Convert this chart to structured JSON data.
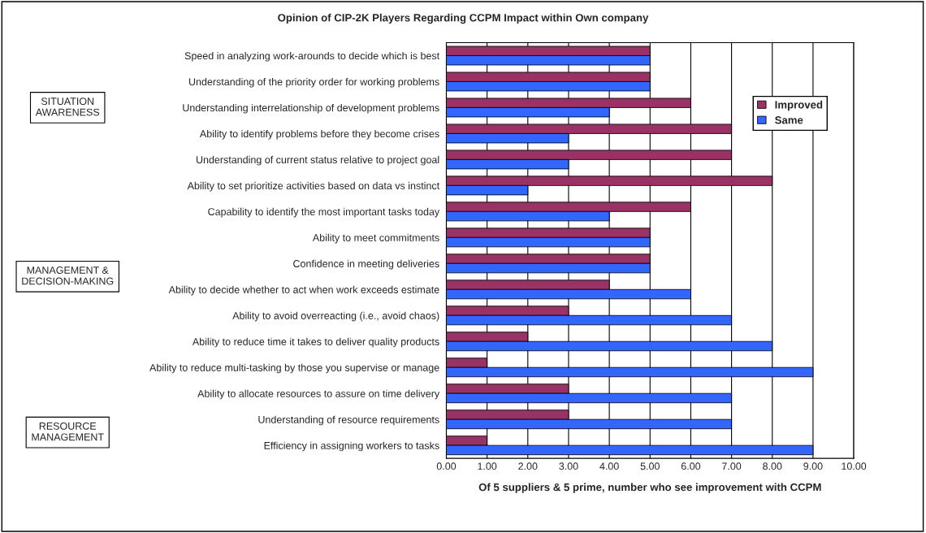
{
  "chart_data": {
    "type": "bar",
    "orientation": "horizontal",
    "title": "Opinion of CIP-2K Players Regarding CCPM Impact within Own company",
    "xlabel": "Of 5 suppliers & 5 prime, number who see improvement with CCPM",
    "categories": [
      "Speed in analyzing work-arounds to decide which is best",
      "Understanding of the priority order for working problems",
      "Understanding interrelationship of development problems",
      "Ability to identify problems before they become crises",
      "Understanding of current status relative to project goal",
      "Ability to set prioritize activities based on data vs instinct",
      "Capability to identify the most important tasks today",
      "Ability to meet commitments",
      "Confidence in meeting deliveries",
      "Ability to decide whether to act when work exceeds estimate",
      "Ability to avoid overreacting (i.e., avoid chaos)",
      "Ability to reduce time it takes to deliver quality products",
      "Ability to reduce multi-tasking by those you supervise or manage",
      "Ability to allocate resources to assure on time delivery",
      "Understanding of resource requirements",
      "Efficiency in assigning workers to tasks"
    ],
    "series": [
      {
        "name": "Improved",
        "color": "#993366",
        "values": [
          5,
          5,
          6,
          7,
          7,
          8,
          6,
          5,
          5,
          4,
          3,
          2,
          1,
          3,
          3,
          1
        ]
      },
      {
        "name": "Same",
        "color": "#3366ff",
        "values": [
          5,
          5,
          4,
          3,
          3,
          2,
          4,
          5,
          5,
          6,
          7,
          8,
          9,
          7,
          7,
          9
        ]
      }
    ],
    "xlim": [
      0,
      10
    ],
    "xticks": [
      {
        "value": 0,
        "label": "0.00"
      },
      {
        "value": 1,
        "label": "1.00"
      },
      {
        "value": 2,
        "label": "2.00"
      },
      {
        "value": 3,
        "label": "3.00"
      },
      {
        "value": 4,
        "label": "4.00"
      },
      {
        "value": 5,
        "label": "5.00"
      },
      {
        "value": 6,
        "label": "6.00"
      },
      {
        "value": 7,
        "label": "7.00"
      },
      {
        "value": 8,
        "label": "8.00"
      },
      {
        "value": 9,
        "label": "9.00"
      },
      {
        "value": 10,
        "label": "10.00"
      }
    ],
    "grid": "x",
    "legend": "right",
    "annotations": [
      "SITUATION\nAWARENESS",
      "MANAGEMENT &\nDECISION-MAKING",
      "RESOURCE\nMANAGEMENT"
    ]
  }
}
